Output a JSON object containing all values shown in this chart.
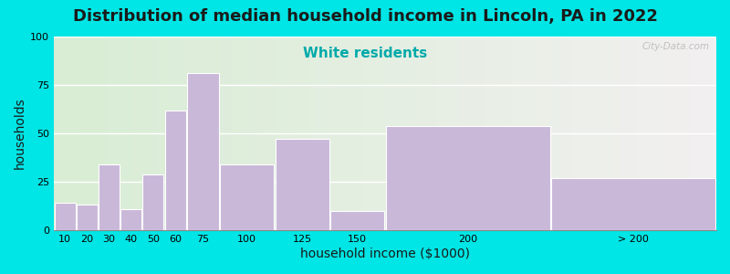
{
  "title": "Distribution of median household income in Lincoln, PA in 2022",
  "subtitle": "White residents",
  "xlabel": "household income ($1000)",
  "ylabel": "households",
  "bar_lefts": [
    0,
    10,
    20,
    30,
    40,
    50,
    60,
    75,
    100,
    125,
    150,
    225
  ],
  "bar_widths": [
    10,
    10,
    10,
    10,
    10,
    10,
    15,
    25,
    25,
    25,
    75,
    75
  ],
  "bar_heights": [
    14,
    13,
    34,
    11,
    29,
    62,
    81,
    34,
    47,
    10,
    54,
    27
  ],
  "bar_xtick_pos": [
    5,
    15,
    25,
    35,
    45,
    55,
    67.5,
    87.5,
    112.5,
    137.5,
    187.5,
    262.5
  ],
  "bar_xtick_labels": [
    "10",
    "20",
    "30",
    "40",
    "50",
    "60",
    "75",
    "100",
    "125",
    "150",
    "200",
    "> 200"
  ],
  "bar_color": "#c9b8d8",
  "bar_edgecolor": "#ffffff",
  "ylim": [
    0,
    100
  ],
  "yticks": [
    0,
    25,
    50,
    75,
    100
  ],
  "xlim": [
    0,
    300
  ],
  "bg_figure": "#00e5e5",
  "bg_axes_left": "#d8edd4",
  "bg_axes_right": "#f2f0f0",
  "grid_color": "#ffffff",
  "title_color": "#1a1a1a",
  "subtitle_color": "#00aaaa",
  "watermark": "City-Data.com",
  "title_fontsize": 13,
  "subtitle_fontsize": 11,
  "xlabel_fontsize": 10,
  "ylabel_fontsize": 10
}
